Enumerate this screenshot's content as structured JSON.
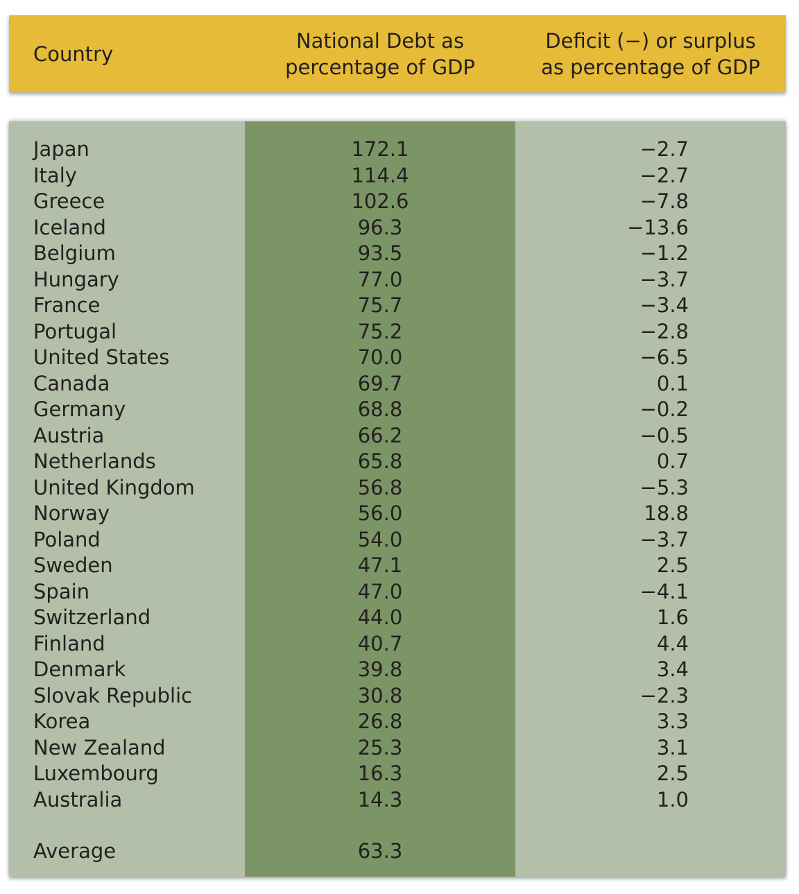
{
  "chart_data": {
    "type": "table",
    "columns": [
      "Country",
      "National Debt as\npercentage of GDP",
      "Deficit (−) or surplus\nas percentage of GDP"
    ],
    "rows": [
      {
        "country": "Japan",
        "debt": "172.1",
        "deficit": "−2.7"
      },
      {
        "country": "Italy",
        "debt": "114.4",
        "deficit": "−2.7"
      },
      {
        "country": "Greece",
        "debt": "102.6",
        "deficit": "−7.8"
      },
      {
        "country": "Iceland",
        "debt": "96.3",
        "deficit": "−13.6"
      },
      {
        "country": "Belgium",
        "debt": "93.5",
        "deficit": "−1.2"
      },
      {
        "country": "Hungary",
        "debt": "77.0",
        "deficit": "−3.7"
      },
      {
        "country": "France",
        "debt": "75.7",
        "deficit": "−3.4"
      },
      {
        "country": "Portugal",
        "debt": "75.2",
        "deficit": "−2.8"
      },
      {
        "country": "United States",
        "debt": "70.0",
        "deficit": "−6.5"
      },
      {
        "country": "Canada",
        "debt": "69.7",
        "deficit": "0.1"
      },
      {
        "country": "Germany",
        "debt": "68.8",
        "deficit": "−0.2"
      },
      {
        "country": "Austria",
        "debt": "66.2",
        "deficit": "−0.5"
      },
      {
        "country": "Netherlands",
        "debt": "65.8",
        "deficit": "0.7"
      },
      {
        "country": "United Kingdom",
        "debt": "56.8",
        "deficit": "−5.3"
      },
      {
        "country": "Norway",
        "debt": "56.0",
        "deficit": "18.8"
      },
      {
        "country": "Poland",
        "debt": "54.0",
        "deficit": "−3.7"
      },
      {
        "country": "Sweden",
        "debt": "47.1",
        "deficit": "2.5"
      },
      {
        "country": "Spain",
        "debt": "47.0",
        "deficit": "−4.1"
      },
      {
        "country": "Switzerland",
        "debt": "44.0",
        "deficit": "1.6"
      },
      {
        "country": "Finland",
        "debt": "40.7",
        "deficit": "4.4"
      },
      {
        "country": "Denmark",
        "debt": "39.8",
        "deficit": "3.4"
      },
      {
        "country": "Slovak Republic",
        "debt": "30.8",
        "deficit": "−2.3"
      },
      {
        "country": "Korea",
        "debt": "26.8",
        "deficit": "3.3"
      },
      {
        "country": "New Zealand",
        "debt": "25.3",
        "deficit": "3.1"
      },
      {
        "country": "Luxembourg",
        "debt": "16.3",
        "deficit": "2.5"
      },
      {
        "country": "Australia",
        "debt": "14.3",
        "deficit": "1.0"
      }
    ],
    "average": {
      "label": "Average",
      "debt": "63.3",
      "deficit": ""
    }
  },
  "colors": {
    "header": "#e6bb37",
    "body": "#b4bfa9",
    "highlight_column": "#7c9566"
  }
}
